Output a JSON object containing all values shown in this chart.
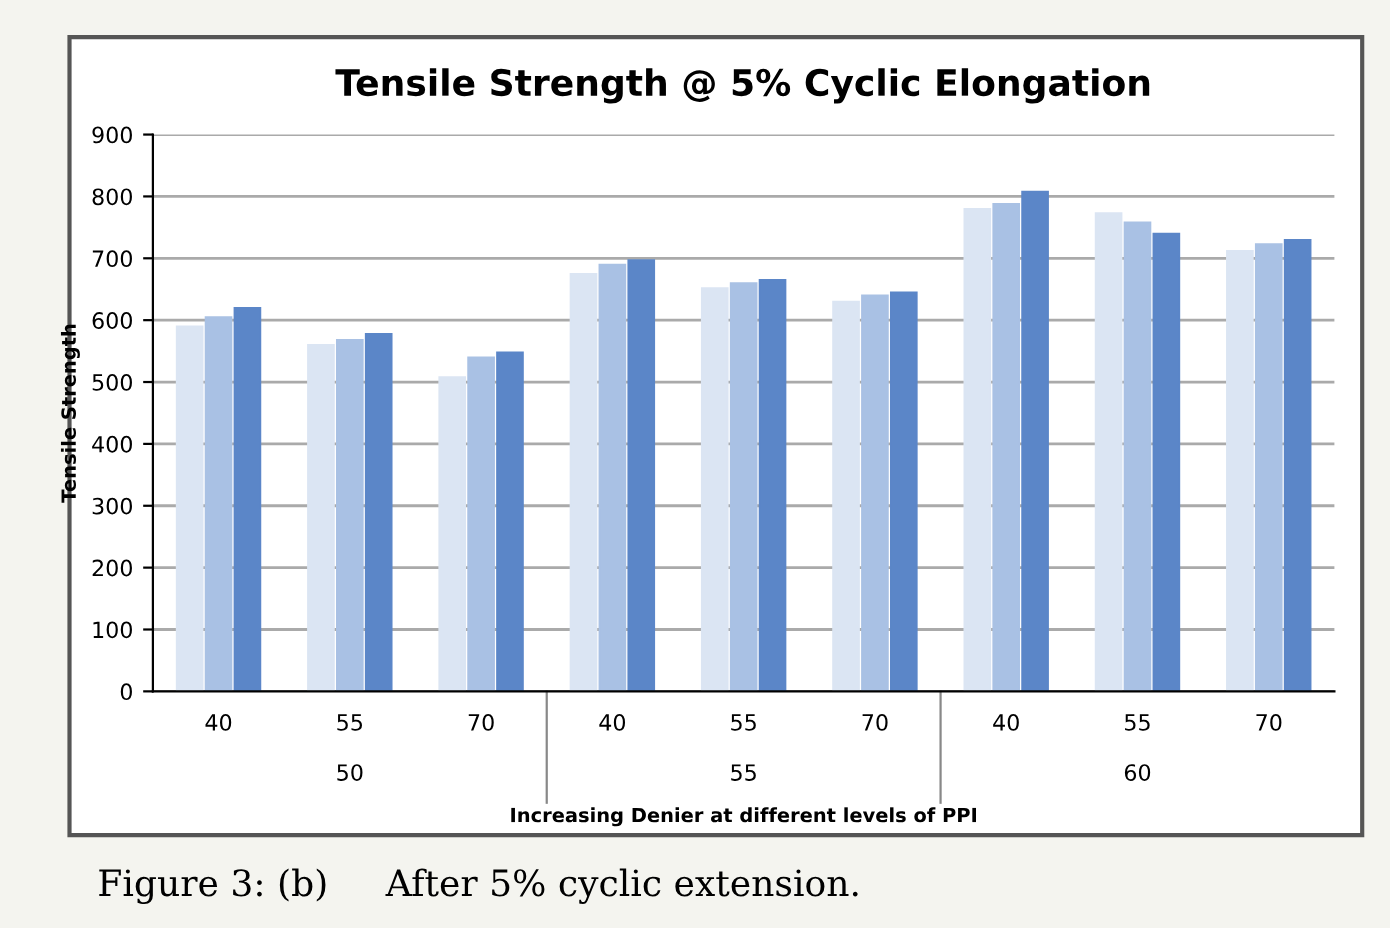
{
  "chart_data": {
    "type": "bar",
    "title": "Tensile Strength @ 5% Cyclic Elongation",
    "ylabel": "Tensile Strength",
    "xlabel": "Increasing Denier at different levels of PPI",
    "categories": [
      "40",
      "55",
      "70",
      "40",
      "55",
      "70",
      "40",
      "55",
      "70"
    ],
    "series": [
      {
        "color": "#dbe5f3",
        "values": [
          590,
          560,
          508,
          675,
          652,
          630,
          780,
          773,
          712
        ]
      },
      {
        "color": "#a9c1e4",
        "values": [
          605,
          568,
          540,
          690,
          660,
          640,
          788,
          758,
          723
        ]
      },
      {
        "color": "#5b86c8",
        "values": [
          620,
          578,
          548,
          697,
          665,
          645,
          808,
          740,
          730
        ]
      }
    ],
    "ylim": [
      0,
      900
    ],
    "yticks": [
      0,
      100,
      200,
      300,
      400,
      500,
      600,
      700,
      800,
      900
    ],
    "grid": "y",
    "annotations": [
      "50",
      "55",
      "60",
      "Figure 3: (b)     After 5% cyclic extension."
    ]
  }
}
